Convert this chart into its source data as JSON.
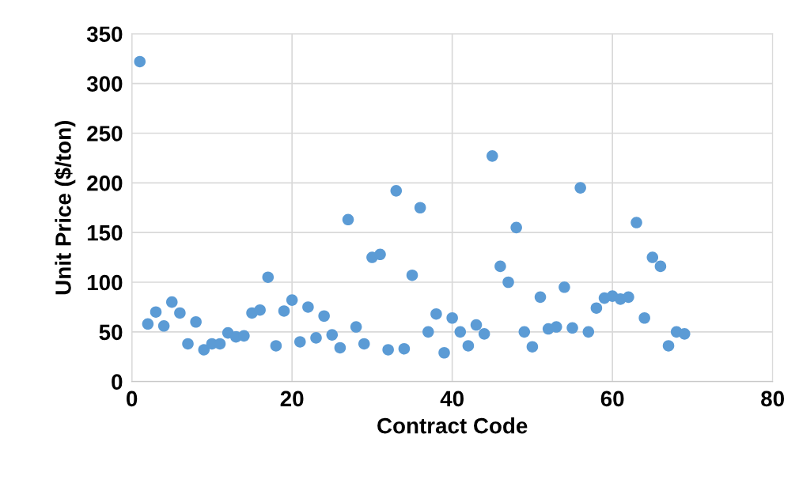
{
  "chart_data": {
    "type": "scatter",
    "xlabel": "Contract Code",
    "ylabel": "Unit Price ($/ton)",
    "x": [
      1,
      2,
      3,
      4,
      5,
      6,
      7,
      8,
      9,
      10,
      11,
      12,
      13,
      14,
      15,
      16,
      17,
      18,
      19,
      20,
      21,
      22,
      23,
      24,
      25,
      26,
      27,
      28,
      29,
      30,
      31,
      32,
      33,
      34,
      35,
      36,
      37,
      38,
      39,
      40,
      41,
      42,
      43,
      44,
      45,
      46,
      47,
      48,
      49,
      50,
      51,
      52,
      53,
      54,
      55,
      56,
      57,
      58,
      59,
      60,
      61,
      62,
      63,
      64,
      65,
      66,
      67,
      68,
      69
    ],
    "series": [
      {
        "color": "#5b9bd5",
        "values": [
          322,
          58,
          70,
          56,
          80,
          69,
          38,
          60,
          32,
          38,
          38,
          49,
          45,
          46,
          69,
          72,
          105,
          36,
          71,
          82,
          40,
          75,
          44,
          66,
          47,
          34,
          163,
          55,
          38,
          125,
          128,
          32,
          192,
          33,
          107,
          175,
          50,
          68,
          29,
          64,
          50,
          36,
          57,
          48,
          227,
          116,
          100,
          155,
          50,
          35,
          85,
          53,
          55,
          95,
          54,
          195,
          50,
          74,
          84,
          86,
          83,
          85,
          160,
          64,
          125,
          116,
          36,
          50,
          48
        ]
      }
    ],
    "xlim": [
      0,
      80
    ],
    "xticks": [
      0,
      20,
      40,
      60,
      80
    ],
    "ylim": [
      0,
      350
    ],
    "yticks": [
      0,
      50,
      100,
      150,
      200,
      250,
      300,
      350
    ],
    "grid": true,
    "marker": "circle"
  }
}
